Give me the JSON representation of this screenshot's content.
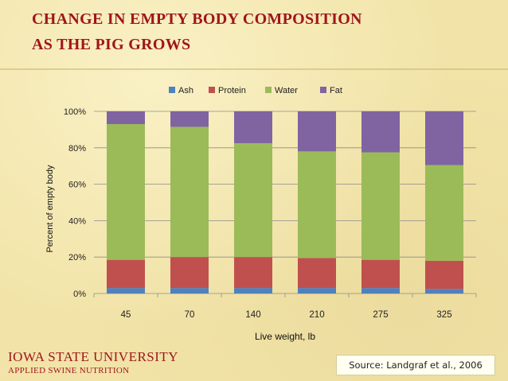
{
  "title": {
    "line1": "CHANGE IN EMPTY BODY COMPOSITION",
    "line2": "AS THE PIG GROWS"
  },
  "footer": {
    "university": "IOWA STATE UNIVERSITY",
    "subtitle": "APPLIED SWINE NUTRITION",
    "source": "Source: Landgraf et al., 2006"
  },
  "colors": {
    "Ash": "#4f81bd",
    "Protein": "#c0504d",
    "Water": "#9bbb59",
    "Fat": "#8064a2",
    "title": "#a0151c"
  },
  "chart_data": {
    "type": "bar",
    "stacked": true,
    "title": "",
    "xlabel": "Live weight, lb",
    "ylabel": "Percent of empty body",
    "ylim": [
      0,
      100
    ],
    "yticks": [
      "0%",
      "20%",
      "40%",
      "60%",
      "80%",
      "100%"
    ],
    "categories": [
      "45",
      "70",
      "140",
      "210",
      "275",
      "325"
    ],
    "legend": "top",
    "series": [
      {
        "name": "Ash",
        "values": [
          3,
          3,
          3,
          3,
          3,
          2.5
        ]
      },
      {
        "name": "Protein",
        "values": [
          15.5,
          17,
          17,
          16.5,
          15.5,
          15.5
        ]
      },
      {
        "name": "Water",
        "values": [
          74.5,
          71.5,
          62.5,
          58.5,
          59,
          52.5
        ]
      },
      {
        "name": "Fat",
        "values": [
          7,
          8.5,
          17.5,
          22,
          22.5,
          29.5
        ]
      }
    ]
  }
}
